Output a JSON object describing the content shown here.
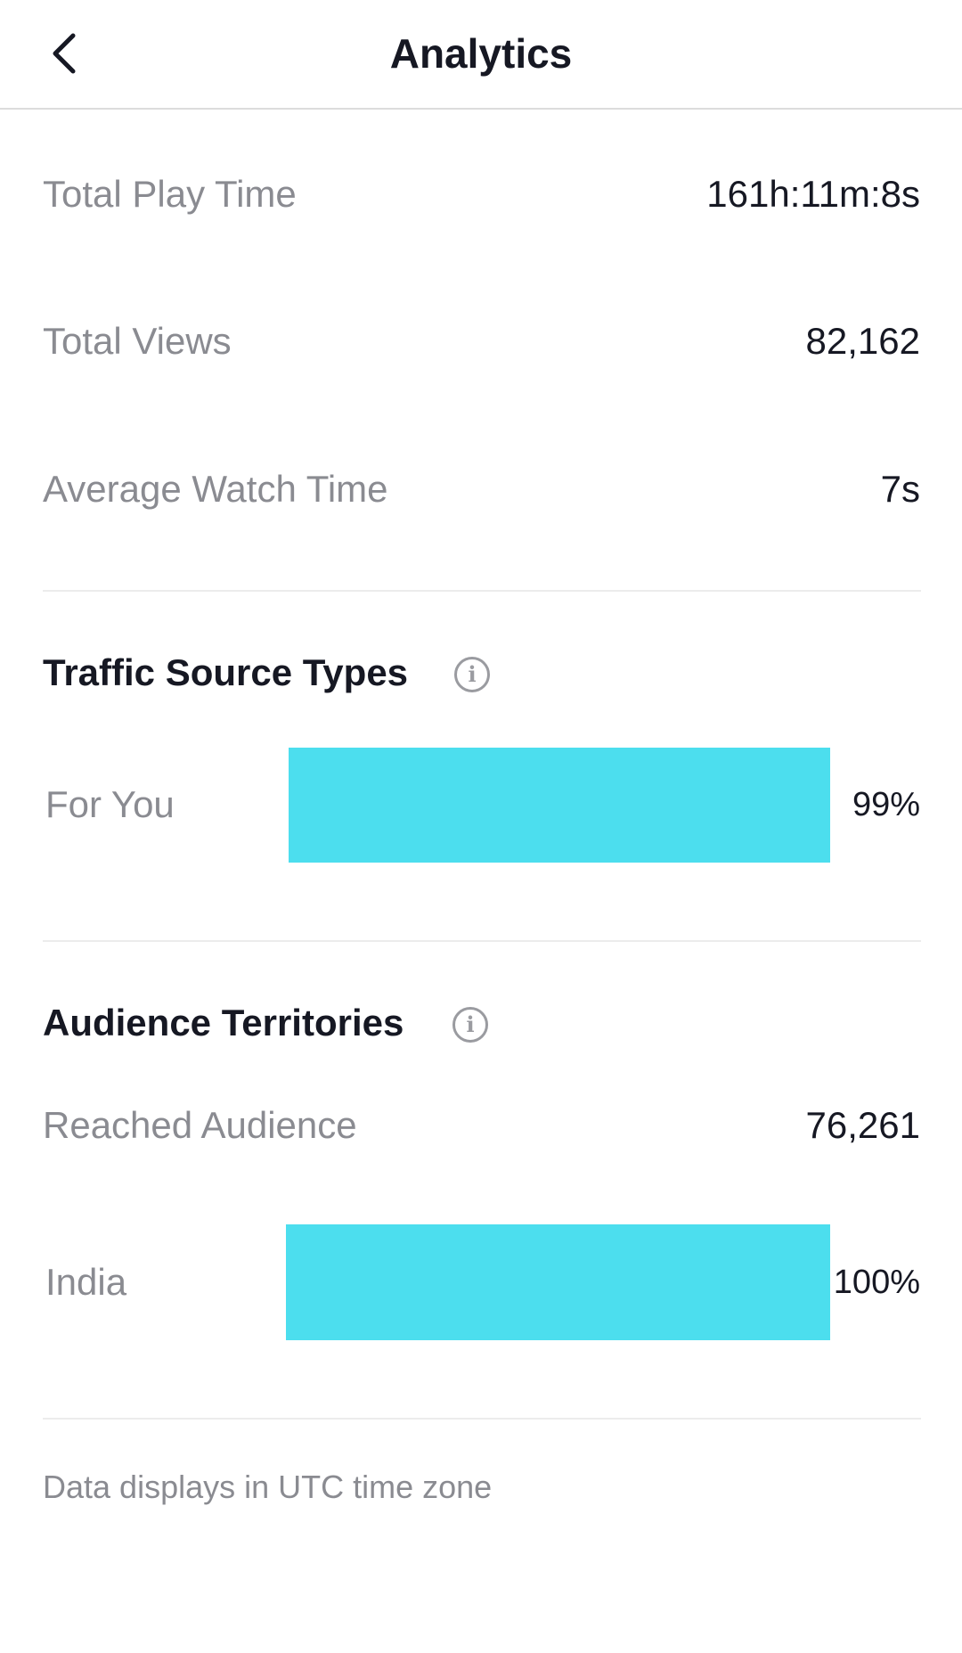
{
  "header": {
    "title": "Analytics",
    "back_icon": "chevron-left-icon"
  },
  "stats": [
    {
      "label": "Total Play Time",
      "value": "161h:11m:8s"
    },
    {
      "label": "Total Views",
      "value": "82,162"
    },
    {
      "label": "Average Watch Time",
      "value": "7s"
    }
  ],
  "traffic": {
    "title": "Traffic Source Types",
    "items": [
      {
        "label": "For You",
        "percent_text": "99%",
        "percent": 99
      }
    ]
  },
  "audience": {
    "title": "Audience Territories",
    "reached_label": "Reached Audience",
    "reached_value": "76,261",
    "items": [
      {
        "label": "India",
        "percent_text": "100%",
        "percent": 100
      }
    ]
  },
  "footer": "Data displays in UTC time zone",
  "colors": {
    "bar": "#4cdeee"
  }
}
